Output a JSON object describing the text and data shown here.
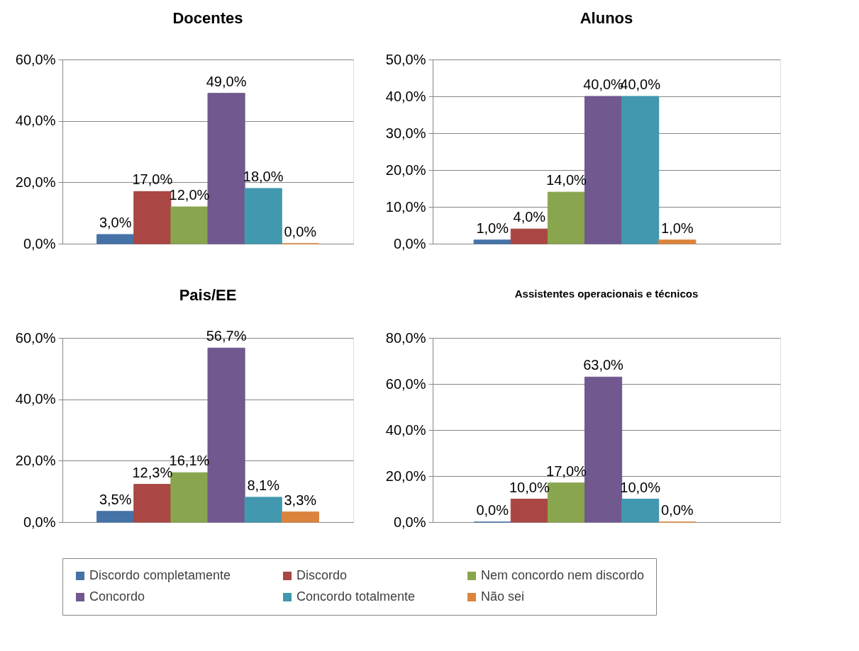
{
  "chart_data": [
    {
      "type": "bar",
      "title": "Docentes",
      "categories": [
        null
      ],
      "series": [
        {
          "color": "#4572a7",
          "values": [
            3.0
          ],
          "value_labels": [
            "3,0%"
          ]
        },
        {
          "color": "#aa4643",
          "values": [
            17.0
          ],
          "value_labels": [
            "17,0%"
          ]
        },
        {
          "color": "#89a54e",
          "values": [
            12.0
          ],
          "value_labels": [
            "12,0%"
          ]
        },
        {
          "color": "#71588f",
          "values": [
            49.0
          ],
          "value_labels": [
            "49,0%"
          ]
        },
        {
          "color": "#4198af",
          "values": [
            18.0
          ],
          "value_labels": [
            "18,0%"
          ]
        },
        {
          "color": "#db843d",
          "values": [
            0.0
          ],
          "value_labels": [
            "0,0%"
          ]
        }
      ],
      "ylim": [
        0,
        60
      ],
      "yticks": [
        {
          "value": 0,
          "label": "0,0%"
        },
        {
          "value": 20,
          "label": "20,0%"
        },
        {
          "value": 40,
          "label": "40,0%"
        },
        {
          "value": 60,
          "label": "60,0%"
        }
      ],
      "grid": "y",
      "tick_labels": "y"
    },
    {
      "type": "bar",
      "title": "Alunos",
      "categories": [
        null
      ],
      "series": [
        {
          "color": "#4572a7",
          "values": [
            1.0
          ],
          "value_labels": [
            "1,0%"
          ]
        },
        {
          "color": "#aa4643",
          "values": [
            4.0
          ],
          "value_labels": [
            "4,0%"
          ]
        },
        {
          "color": "#89a54e",
          "values": [
            14.0
          ],
          "value_labels": [
            "14,0%"
          ]
        },
        {
          "color": "#71588f",
          "values": [
            40.0
          ],
          "value_labels": [
            "40,0%"
          ]
        },
        {
          "color": "#4198af",
          "values": [
            40.0
          ],
          "value_labels": [
            "40,0%"
          ]
        },
        {
          "color": "#db843d",
          "values": [
            1.0
          ],
          "value_labels": [
            "1,0%"
          ]
        }
      ],
      "ylim": [
        0,
        50
      ],
      "yticks": [
        {
          "value": 0,
          "label": "0,0%"
        },
        {
          "value": 10,
          "label": "10,0%"
        },
        {
          "value": 20,
          "label": "20,0%"
        },
        {
          "value": 30,
          "label": "30,0%"
        },
        {
          "value": 40,
          "label": "40,0%"
        },
        {
          "value": 50,
          "label": "50,0%"
        }
      ],
      "grid": "y",
      "tick_labels": "y"
    },
    {
      "type": "bar",
      "title": "Pais/EE",
      "categories": [
        null
      ],
      "series": [
        {
          "name": "Discordo completamente",
          "color": "#4572a7",
          "values": [
            3.5
          ],
          "value_labels": [
            "3,5%"
          ]
        },
        {
          "name": "Discordo",
          "color": "#aa4643",
          "values": [
            12.3
          ],
          "value_labels": [
            "12,3%"
          ]
        },
        {
          "name": "Nem concordo nem discordo",
          "color": "#89a54e",
          "values": [
            16.1
          ],
          "value_labels": [
            "16,1%"
          ]
        },
        {
          "name": "Concordo",
          "color": "#71588f",
          "values": [
            56.7
          ],
          "value_labels": [
            "56,7%"
          ]
        },
        {
          "name": "Concordo totalmente",
          "color": "#4198af",
          "values": [
            8.1
          ],
          "value_labels": [
            "8,1%"
          ]
        },
        {
          "name": "Não sei",
          "color": "#db843d",
          "values": [
            3.3
          ],
          "value_labels": [
            "3,3%"
          ]
        }
      ],
      "ylim": [
        0,
        60
      ],
      "yticks": [
        {
          "value": 0,
          "label": "0,0%"
        },
        {
          "value": 20,
          "label": "20,0%"
        },
        {
          "value": 40,
          "label": "40,0%"
        },
        {
          "value": 60,
          "label": "60,0%"
        }
      ],
      "grid": "y",
      "legend": "bottom",
      "tick_labels": "y"
    },
    {
      "type": "bar",
      "title": "Assistentes operacionais e técnicos",
      "categories": [
        null
      ],
      "series": [
        {
          "color": "#4572a7",
          "values": [
            0.0
          ],
          "value_labels": [
            "0,0%"
          ]
        },
        {
          "color": "#aa4643",
          "values": [
            10.0
          ],
          "value_labels": [
            "10,0%"
          ]
        },
        {
          "color": "#89a54e",
          "values": [
            17.0
          ],
          "value_labels": [
            "17,0%"
          ]
        },
        {
          "color": "#71588f",
          "values": [
            63.0
          ],
          "value_labels": [
            "63,0%"
          ]
        },
        {
          "color": "#4198af",
          "values": [
            10.0
          ],
          "value_labels": [
            "10,0%"
          ]
        },
        {
          "color": "#db843d",
          "values": [
            0.0
          ],
          "value_labels": [
            "0,0%"
          ]
        }
      ],
      "ylim": [
        0,
        80
      ],
      "yticks": [
        {
          "value": 0,
          "label": "0,0%"
        },
        {
          "value": 20,
          "label": "20,0%"
        },
        {
          "value": 40,
          "label": "40,0%"
        },
        {
          "value": 60,
          "label": "60,0%"
        },
        {
          "value": 80,
          "label": "80,0%"
        }
      ],
      "grid": "y",
      "tick_labels": "y"
    }
  ]
}
